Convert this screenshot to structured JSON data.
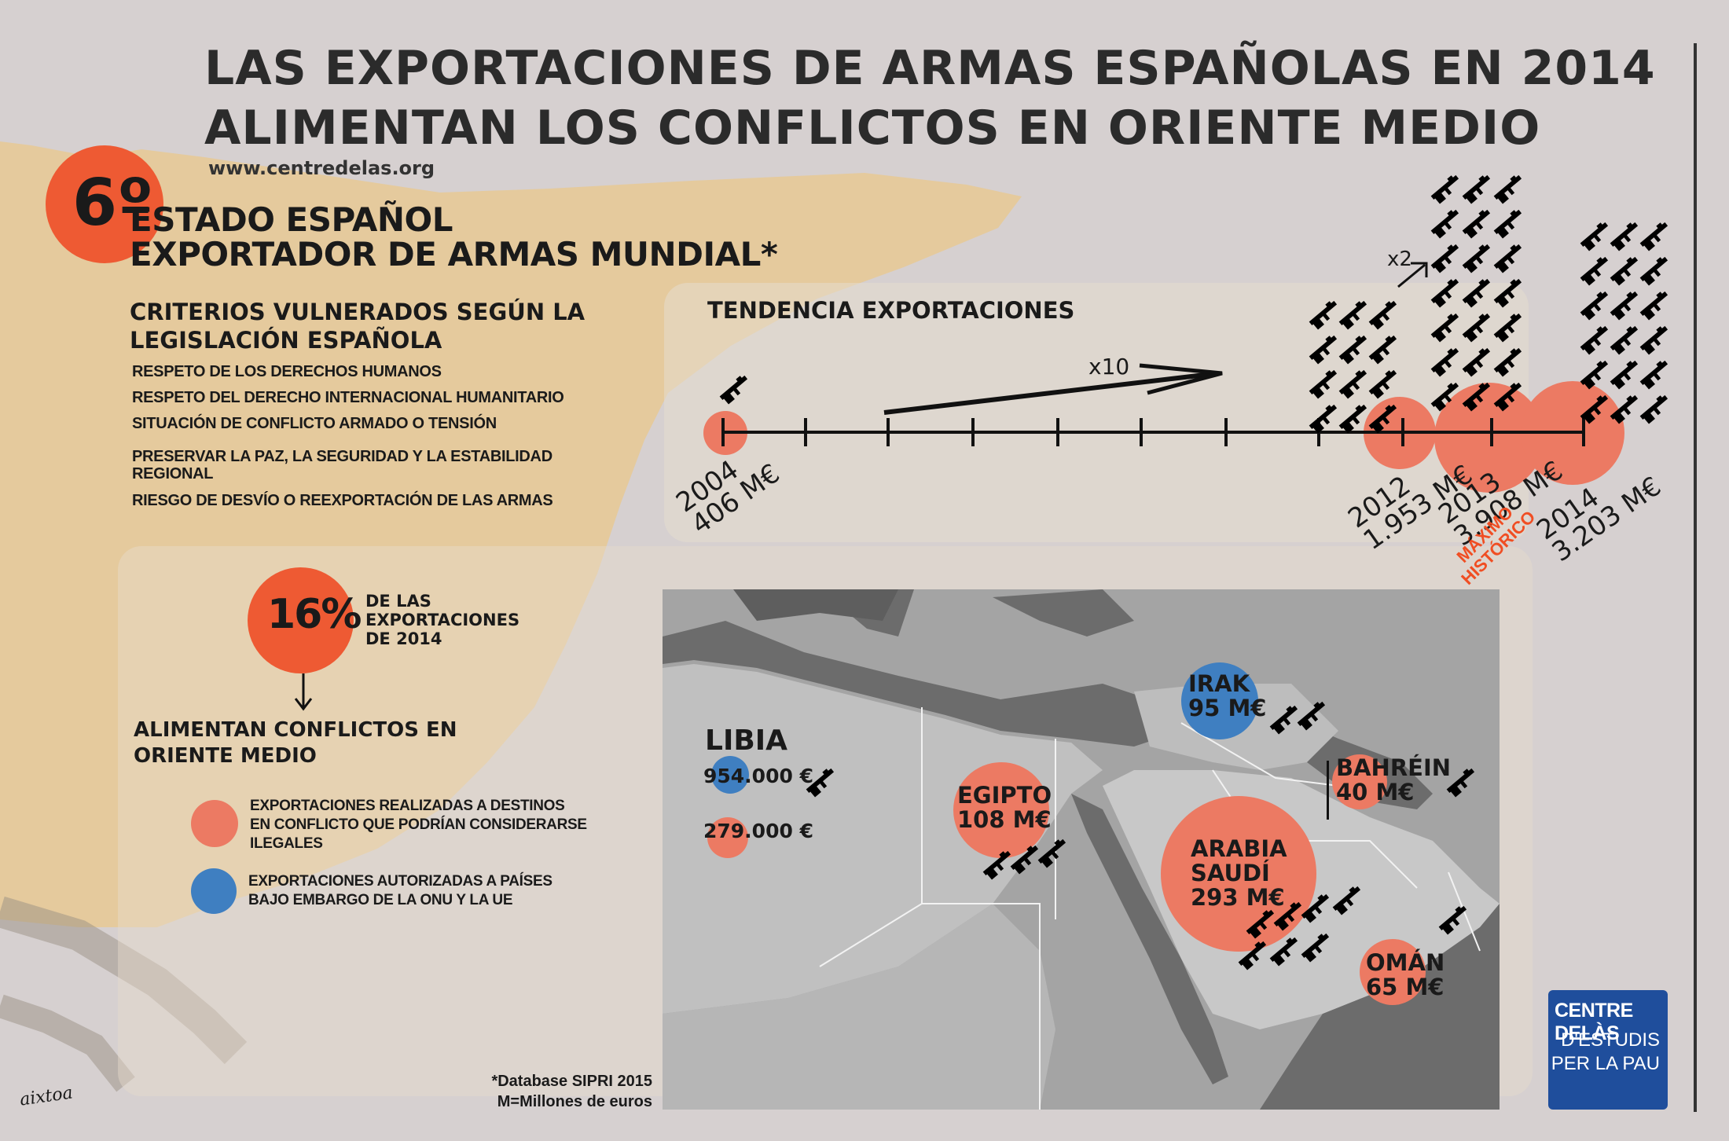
{
  "title": {
    "line1": "LAS EXPORTACIONES DE ARMAS ESPAÑOLAS EN 2014",
    "line2": "ALIMENTAN LOS CONFLICTOS EN ORIENTE MEDIO"
  },
  "website": "www.centredelas.org",
  "ranking": {
    "badge": "6º",
    "line1": "ESTADO ESPAÑOL",
    "line2": "EXPORTADOR DE ARMAS MUNDIAL*"
  },
  "criteria": {
    "heading1": "CRITERIOS VULNERADOS SEGÚN LA",
    "heading2": "LEGISLACIÓN ESPAÑOLA",
    "items": [
      "RESPETO DE LOS DERECHOS HUMANOS",
      "RESPETO DEL DERECHO INTERNACIONAL HUMANITARIO",
      "SITUACIÓN DE CONFLICTO ARMADO O TENSIÓN",
      "PRESERVAR LA PAZ, LA SEGURIDAD Y LA ESTABILIDAD",
      "REGIONAL",
      "RIESGO DE DESVÍO O REEXPORTACIÓN DE LAS ARMAS"
    ]
  },
  "trend": {
    "heading": "TENDENCIA EXPORTACIONES",
    "multiplier_x10": "x10",
    "multiplier_x2": "x2",
    "points": [
      {
        "year": "2004",
        "value": "406 M€"
      },
      {
        "year": "2012",
        "value": "1.953 M€"
      },
      {
        "year": "2013",
        "value": "3.908 M€"
      },
      {
        "year": "2014",
        "value": "3.203 M€"
      }
    ],
    "note_line1": "MÁXIMO",
    "note_line2": "HISTÓRICO"
  },
  "share": {
    "percent": "16%",
    "line1": "DE LAS",
    "line2": "EXPORTACIONES",
    "line3": "DE 2014",
    "conclusion1": "ALIMENTAN CONFLICTOS EN",
    "conclusion2": "ORIENTE MEDIO"
  },
  "legend": {
    "orange_line1": "EXPORTACIONES REALIZADAS A DESTINOS",
    "orange_line2": "EN CONFLICTO QUE PODRÍAN CONSIDERARSE",
    "orange_line3": "ILEGALES",
    "blue_line1": "EXPORTACIONES AUTORIZADAS A PAÍSES",
    "blue_line2": "BAJO EMBARGO DE LA ONU Y LA UE"
  },
  "map": {
    "libia": {
      "name": "LIBIA",
      "blue_value": "954.000 €",
      "orange_value": "279.000 €"
    },
    "egipto": {
      "name": "EGIPTO",
      "value": "108 M€"
    },
    "irak": {
      "name": "IRAK",
      "value": "95 M€"
    },
    "bahrein": {
      "name": "BAHRÉIN",
      "value": "40 M€"
    },
    "arabia": {
      "name1": "ARABIA",
      "name2": "SAUDÍ",
      "value": "293 M€"
    },
    "oman": {
      "name": "OMÁN",
      "value": "65 M€"
    }
  },
  "footnote": {
    "line1": "*Database SIPRI 2015",
    "line2": "M=Millones de euros"
  },
  "logo": {
    "line1": "CENTRE DELÀS",
    "line2": "D'ESTUDIS",
    "line3": "PER LA PAU"
  },
  "signature": "aixtoa",
  "icons": {
    "gun": "rifle-icon"
  },
  "colors": {
    "accent": "#f04e23",
    "orange": "#ec7a63",
    "blue": "#3f7fc1",
    "logo": "#1f4e9c"
  }
}
